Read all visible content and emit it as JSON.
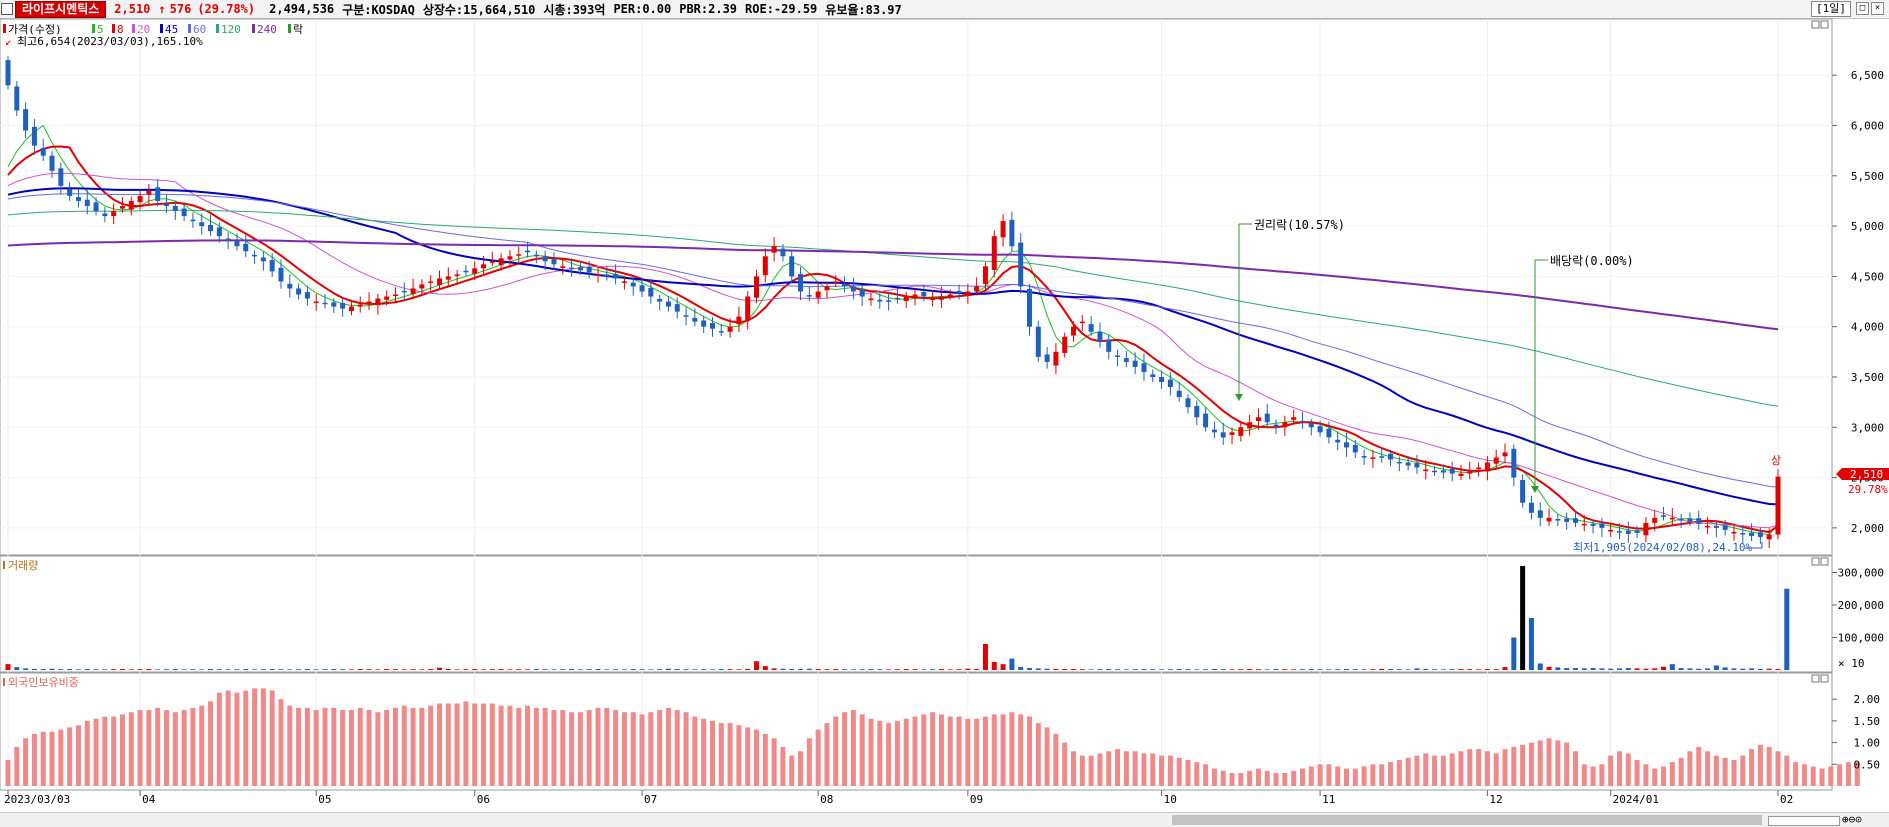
{
  "header": {
    "stock_name": "라이프시멘틱스",
    "price": "2,510",
    "arrow": "↑",
    "change": "576",
    "change_pct": "(29.78%)",
    "volume": "2,494,536",
    "market": "구분:KOSDAQ",
    "shares": "상장수:15,664,510",
    "mcap": "시총:393억",
    "per": "PER:0.00",
    "pbr": "PBR:2.39",
    "roe": "ROE:-29.59",
    "float": "유보율:83.97",
    "period": "[1일]"
  },
  "legend": {
    "price_label": "가격(수정)",
    "items": [
      {
        "label": "5",
        "color": "#22bb22"
      },
      {
        "label": "8",
        "color": "#e00000"
      },
      {
        "label": "20",
        "color": "#cc55cc"
      },
      {
        "label": "45",
        "color": "#0000bb"
      },
      {
        "label": "60",
        "color": "#6a6ae0"
      },
      {
        "label": "120",
        "color": "#2ea86a"
      },
      {
        "label": "240",
        "color": "#7a2aaa"
      }
    ],
    "rak": "락"
  },
  "colors": {
    "up": "#e00000",
    "down": "#1f5fbf"
  },
  "chart_data": [
    {
      "type": "candlestick",
      "title": "",
      "y_ticks": [
        "6,500",
        "6,000",
        "5,500",
        "5,000",
        "4,500",
        "4,000",
        "3,500",
        "3,000",
        "2,500",
        "2,000"
      ],
      "x_ticks": [
        "2023/03/03",
        "04",
        "05",
        "06",
        "07",
        "08",
        "09",
        "10",
        "11",
        "12",
        "2024/01",
        "02"
      ],
      "ylim": [
        1800,
        6850
      ],
      "annotations": {
        "high": "최고6,654(2023/03/03),165.10%",
        "low": "최저1,905(2024/02/08),24.10%",
        "rights": "권리락(10.57%)",
        "dividend": "배당락(0.00%)",
        "price_tag": "2,510",
        "price_tag_pct": "29.78%",
        "limit_up": "상"
      },
      "close_series": [
        6400,
        6150,
        5950,
        5800,
        5700,
        5550,
        5400,
        5300,
        5250,
        5200,
        5150,
        5100,
        5150,
        5200,
        5250,
        5300,
        5350,
        5250,
        5200,
        5150,
        5100,
        5050,
        5000,
        4950,
        4900,
        4850,
        4800,
        4750,
        4700,
        4650,
        4550,
        4450,
        4380,
        4320,
        4280,
        4250,
        4230,
        4200,
        4180,
        4200,
        4220,
        4250,
        4280,
        4300,
        4320,
        4350,
        4380,
        4420,
        4450,
        4480,
        4500,
        4520,
        4550,
        4580,
        4620,
        4650,
        4680,
        4700,
        4720,
        4740,
        4700,
        4650,
        4620,
        4600,
        4580,
        4560,
        4540,
        4520,
        4500,
        4480,
        4450,
        4400,
        4350,
        4300,
        4250,
        4200,
        4150,
        4100,
        4050,
        4000,
        3980,
        3950,
        4000,
        4100,
        4300,
        4500,
        4700,
        4800,
        4700,
        4500,
        4350,
        4300,
        4350,
        4400,
        4450,
        4400,
        4350,
        4300,
        4280,
        4250,
        4250,
        4280,
        4300,
        4320,
        4300,
        4280,
        4300,
        4320,
        4330,
        4350,
        4400,
        4600,
        4900,
        5050,
        4800,
        4400,
        4000,
        3700,
        3650,
        3750,
        3900,
        4000,
        4050,
        3950,
        3850,
        3750,
        3700,
        3650,
        3600,
        3550,
        3500,
        3450,
        3400,
        3300,
        3200,
        3100,
        3000,
        2950,
        2900,
        2950,
        3000,
        3050,
        3100,
        3050,
        3000,
        3050,
        3100,
        3050,
        3000,
        2950,
        2900,
        2850,
        2800,
        2750,
        2700,
        2700,
        2700,
        2680,
        2650,
        2620,
        2600,
        2580,
        2560,
        2550,
        2540,
        2540,
        2560,
        2600,
        2650,
        2700,
        2750,
        2500,
        2250,
        2150,
        2100,
        2100,
        2080,
        2060,
        2050,
        2040,
        2020,
        2000,
        1980,
        1960,
        1940,
        1950,
        2050,
        2100,
        2120,
        2100,
        2080,
        2060,
        2040,
        2020,
        2000,
        1980,
        1960,
        1940,
        1920,
        1910,
        1934,
        2510
      ]
    },
    {
      "type": "bar",
      "title": "거래량",
      "y_ticks": [
        "300,000",
        "200,000",
        "100,000"
      ],
      "multiplier": "× 10",
      "ylim": [
        0,
        320000
      ],
      "values": [
        18000,
        9000,
        5000,
        3500,
        3000,
        4000,
        2500,
        3000,
        2000,
        3000,
        2500,
        2000,
        2500,
        3000,
        2000,
        2500,
        3000,
        2000,
        2500,
        3000,
        2000,
        2500,
        2000,
        3000,
        2500,
        2000,
        2500,
        3000,
        2000,
        2500,
        3000,
        2500,
        2000,
        2500,
        3000,
        2000,
        2500,
        3000,
        2500,
        2000,
        3000,
        2500,
        2000,
        3000,
        2500,
        2000,
        2500,
        2000,
        3000,
        7000,
        3000,
        2000,
        2500,
        3000,
        2000,
        2500,
        3000,
        2000,
        2500,
        2000,
        3000,
        2500,
        2000,
        2500,
        3000,
        2000,
        2500,
        3000,
        2000,
        2500,
        2000,
        3000,
        2500,
        2000,
        2500,
        4000,
        3000,
        2500,
        2000,
        2500,
        2000,
        3000,
        2500,
        2000,
        3500,
        27000,
        12000,
        5000,
        4000,
        3500,
        3000,
        4000,
        3000,
        2500,
        3000,
        2500,
        2000,
        2500,
        3000,
        2500,
        2000,
        2500,
        3000,
        2500,
        2000,
        2500,
        3000,
        2000,
        2500,
        4000,
        3000,
        80000,
        25000,
        18000,
        35000,
        9000,
        6000,
        5000,
        4000,
        3500,
        3000,
        3000,
        2500,
        2000,
        2500,
        3000,
        2500,
        2000,
        2500,
        3000,
        2500,
        2000,
        2500,
        3000,
        2500,
        2000,
        2500,
        3000,
        2500,
        2000,
        2500,
        3000,
        2500,
        2000,
        3000,
        2500,
        2000,
        2500,
        3000,
        2500,
        2000,
        2500,
        3000,
        2500,
        2000,
        2500,
        3500,
        3000,
        2500,
        2000,
        5000,
        3500,
        2500,
        2000,
        2500,
        3000,
        2500,
        2000,
        3000,
        2500,
        9000,
        100000,
        320000,
        160000,
        20000,
        10000,
        8000,
        6000,
        6000,
        5000,
        6000,
        5000,
        4000,
        5000,
        6000,
        5000,
        4000,
        5000,
        10000,
        18000,
        6000,
        5000,
        4000,
        5000,
        14000,
        8000,
        5000,
        4000,
        5000,
        3000,
        4000,
        3000,
        250000
      ]
    },
    {
      "type": "bar",
      "title": "외국인보유비중",
      "y_ticks": [
        "2.00",
        "1.50",
        "1.00",
        "0.50"
      ],
      "ylim": [
        0,
        2.35
      ],
      "values": [
        0.6,
        0.9,
        1.1,
        1.2,
        1.25,
        1.25,
        1.3,
        1.35,
        1.4,
        1.5,
        1.55,
        1.6,
        1.6,
        1.65,
        1.7,
        1.75,
        1.75,
        1.8,
        1.75,
        1.7,
        1.75,
        1.8,
        1.85,
        1.95,
        2.15,
        2.2,
        2.15,
        2.2,
        2.25,
        2.25,
        2.2,
        2.0,
        1.85,
        1.8,
        1.8,
        1.75,
        1.8,
        1.8,
        1.75,
        1.75,
        1.8,
        1.75,
        1.7,
        1.75,
        1.8,
        1.85,
        1.8,
        1.8,
        1.85,
        1.9,
        1.9,
        1.9,
        1.95,
        1.9,
        1.9,
        1.9,
        1.85,
        1.85,
        1.8,
        1.85,
        1.8,
        1.8,
        1.75,
        1.75,
        1.7,
        1.7,
        1.75,
        1.8,
        1.8,
        1.75,
        1.7,
        1.7,
        1.65,
        1.7,
        1.75,
        1.8,
        1.75,
        1.7,
        1.6,
        1.55,
        1.5,
        1.45,
        1.45,
        1.4,
        1.35,
        1.3,
        1.2,
        1.1,
        0.9,
        0.7,
        0.8,
        1.1,
        1.3,
        1.45,
        1.6,
        1.7,
        1.75,
        1.65,
        1.55,
        1.5,
        1.45,
        1.5,
        1.55,
        1.6,
        1.65,
        1.7,
        1.65,
        1.6,
        1.6,
        1.55,
        1.55,
        1.6,
        1.65,
        1.65,
        1.7,
        1.65,
        1.6,
        1.45,
        1.35,
        1.2,
        1.0,
        0.8,
        0.7,
        0.7,
        0.75,
        0.8,
        0.85,
        0.8,
        0.8,
        0.75,
        0.75,
        0.7,
        0.7,
        0.65,
        0.6,
        0.55,
        0.5,
        0.4,
        0.35,
        0.3,
        0.3,
        0.35,
        0.4,
        0.35,
        0.3,
        0.3,
        0.35,
        0.4,
        0.45,
        0.5,
        0.5,
        0.45,
        0.4,
        0.4,
        0.45,
        0.5,
        0.5,
        0.55,
        0.6,
        0.65,
        0.7,
        0.75,
        0.7,
        0.7,
        0.75,
        0.8,
        0.85,
        0.85,
        0.8,
        0.75,
        0.85,
        0.9,
        0.95,
        1.0,
        1.05,
        1.1,
        1.05,
        1.0,
        0.8,
        0.5,
        0.45,
        0.5,
        0.7,
        0.8,
        0.75,
        0.6,
        0.5,
        0.4,
        0.45,
        0.55,
        0.65,
        0.8,
        0.9,
        0.8,
        0.7,
        0.65,
        0.6,
        0.7,
        0.85,
        0.95,
        0.9,
        0.8,
        0.7,
        0.55,
        0.5,
        0.45,
        0.4,
        0.45,
        0.5,
        0.55,
        0.55
      ]
    }
  ]
}
